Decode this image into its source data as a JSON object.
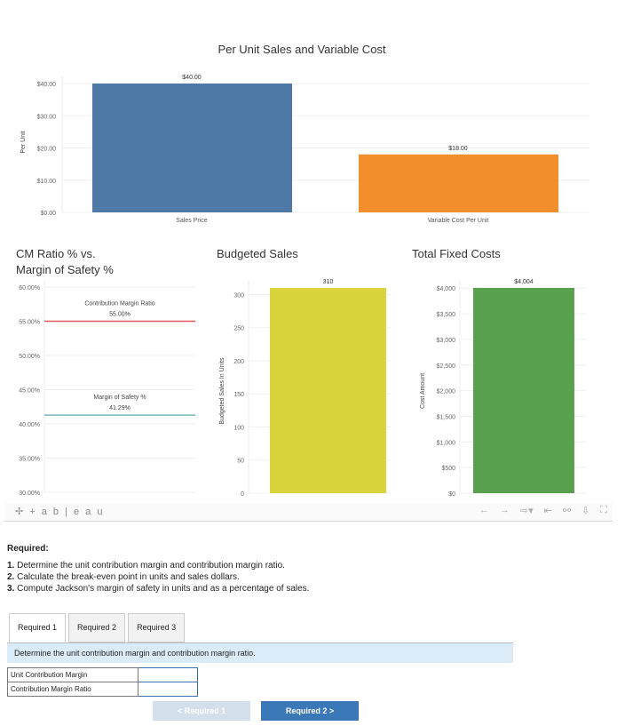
{
  "chart_data": [
    {
      "type": "bar",
      "title": "Per Unit Sales and Variable Cost",
      "ylabel": "Per Unit",
      "categories": [
        "Sales Price",
        "Variable Cost Per Unit"
      ],
      "values": [
        40,
        18
      ],
      "data_labels": [
        "$40.00",
        "$18.00"
      ],
      "yticks": [
        "$0.00",
        "$10.00",
        "$20.00",
        "$30.00",
        "$40.00"
      ],
      "ylim": [
        0,
        44
      ],
      "colors": [
        "#4e79a7",
        "#f28e2b"
      ],
      "grid": true
    },
    {
      "type": "line",
      "title": "CM Ratio % vs. Margin of Safety %",
      "title_lines": [
        "CM Ratio % vs.",
        "Margin of Safety %"
      ],
      "series": [
        {
          "name": "Contribution Margin Ratio",
          "value": 55.0,
          "label": "55.00%",
          "color": "#e15759"
        },
        {
          "name": "Margin of Safety %",
          "value": 41.29,
          "label": "41.29%",
          "color": "#76b7b2"
        }
      ],
      "yticks": [
        "30.00%",
        "35.00%",
        "40.00%",
        "45.00%",
        "50.00%",
        "55.00%",
        "60.00%"
      ],
      "ylim": [
        30,
        60
      ],
      "grid": true
    },
    {
      "type": "bar",
      "title": "Budgeted Sales",
      "ylabel": "Budgeted Sales In Units",
      "values": [
        310
      ],
      "data_labels": [
        "310"
      ],
      "yticks": [
        "0",
        "50",
        "100",
        "150",
        "200",
        "250",
        "300"
      ],
      "ylim": [
        0,
        310
      ],
      "colors": [
        "#d9d43c"
      ],
      "grid": true
    },
    {
      "type": "bar",
      "title": "Total Fixed Costs",
      "ylabel": "Cost Amount",
      "values": [
        4004
      ],
      "data_labels": [
        "$4,004"
      ],
      "yticks": [
        "$0",
        "$500",
        "$1,000",
        "$1,500",
        "$2,000",
        "$2,500",
        "$3,000",
        "$3,500",
        "$4,000"
      ],
      "ylim": [
        0,
        4004
      ],
      "colors": [
        "#59a14f"
      ],
      "grid": true
    }
  ],
  "toolbar": {
    "logo": "+ a b | e a u",
    "icons": [
      "undo-icon",
      "redo-icon",
      "revert-icon",
      "reset-icon",
      "share-icon",
      "download-icon",
      "fullscreen-icon"
    ]
  },
  "required": {
    "heading": "Required:",
    "items": [
      {
        "num": "1.",
        "text": "Determine the unit contribution margin and contribution margin ratio."
      },
      {
        "num": "2.",
        "text": "Calculate the break-even point in units and sales dollars."
      },
      {
        "num": "3.",
        "text": "Compute Jackson's margin of safety in units and as a percentage of sales."
      }
    ]
  },
  "tabs": [
    "Required 1",
    "Required 2",
    "Required 3"
  ],
  "instruction": "Determine the unit contribution margin and contribution margin ratio.",
  "form": {
    "rows": [
      {
        "label": "Unit Contribution Margin",
        "value": ""
      },
      {
        "label": "Contribution Margin Ratio",
        "value": ""
      }
    ]
  },
  "nav": {
    "prev": "< Required 1",
    "next": "Required 2 >"
  }
}
